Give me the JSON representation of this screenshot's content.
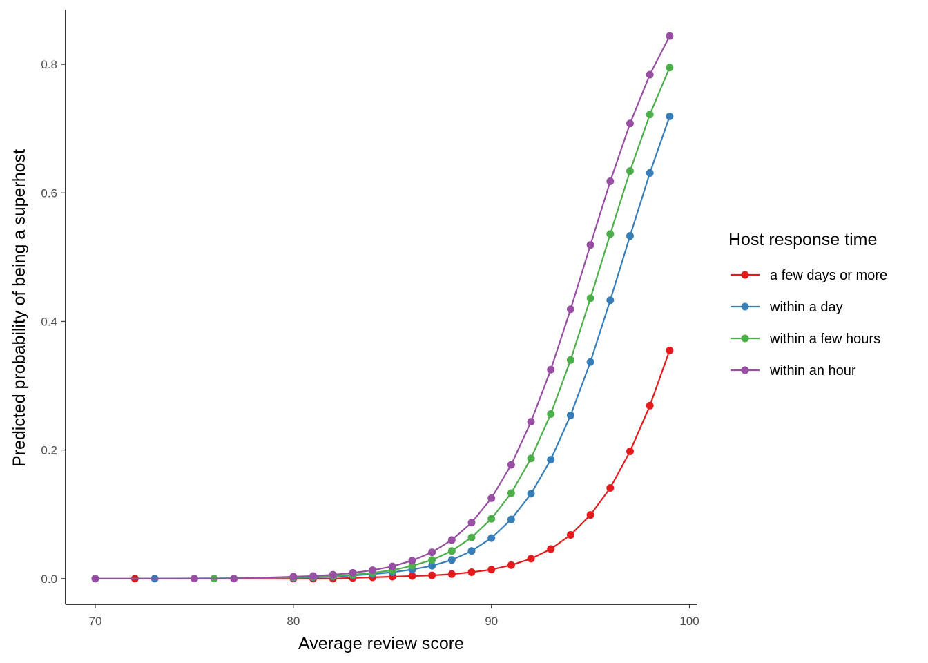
{
  "chart_data": {
    "type": "line",
    "xlabel": "Average review score",
    "ylabel": "Predicted probability of being a superhost",
    "xlim": [
      68.5,
      100.4
    ],
    "ylim": [
      -0.04,
      0.885
    ],
    "x_ticks": [
      70,
      80,
      90,
      100
    ],
    "x_tick_labels": [
      "70",
      "80",
      "90",
      "100"
    ],
    "y_ticks": [
      0.0,
      0.2,
      0.4,
      0.6,
      0.8
    ],
    "y_tick_labels": [
      "0.0",
      "0.2",
      "0.4",
      "0.6",
      "0.8"
    ],
    "grid": false,
    "legend": {
      "title": "Host response time",
      "position": "right"
    },
    "series": [
      {
        "name": "a few days or more",
        "color": "#E41A1C",
        "x": [
          72,
          80,
          81,
          82,
          83,
          84,
          85,
          86,
          87,
          88,
          89,
          90,
          91,
          92,
          93,
          94,
          95,
          96,
          97,
          98,
          99
        ],
        "y": [
          0.0,
          0.0,
          0.0,
          0.0,
          0.001,
          0.002,
          0.003,
          0.004,
          0.005,
          0.007,
          0.01,
          0.014,
          0.021,
          0.031,
          0.046,
          0.068,
          0.099,
          0.141,
          0.198,
          0.269,
          0.355
        ]
      },
      {
        "name": "within a day",
        "color": "#377EB8",
        "x": [
          70,
          73,
          80,
          81,
          82,
          83,
          84,
          85,
          86,
          87,
          88,
          89,
          90,
          91,
          92,
          93,
          94,
          95,
          96,
          97,
          98,
          99
        ],
        "y": [
          0.0,
          0.0,
          0.001,
          0.002,
          0.003,
          0.005,
          0.007,
          0.01,
          0.014,
          0.02,
          0.029,
          0.043,
          0.063,
          0.092,
          0.132,
          0.185,
          0.254,
          0.337,
          0.433,
          0.533,
          0.631,
          0.719
        ]
      },
      {
        "name": "within a few hours",
        "color": "#4DAF4A",
        "x": [
          76,
          80,
          81,
          82,
          83,
          84,
          85,
          86,
          87,
          88,
          89,
          90,
          91,
          92,
          93,
          94,
          95,
          96,
          97,
          98,
          99
        ],
        "y": [
          0.0,
          0.002,
          0.003,
          0.004,
          0.006,
          0.009,
          0.013,
          0.02,
          0.029,
          0.043,
          0.064,
          0.093,
          0.133,
          0.187,
          0.256,
          0.34,
          0.436,
          0.536,
          0.634,
          0.722,
          0.795
        ]
      },
      {
        "name": "within an hour",
        "color": "#984EA3",
        "x": [
          70,
          75,
          77,
          80,
          81,
          82,
          83,
          84,
          85,
          86,
          87,
          88,
          89,
          90,
          91,
          92,
          93,
          94,
          95,
          96,
          97,
          98,
          99
        ],
        "y": [
          0.0,
          0.0,
          0.0,
          0.003,
          0.004,
          0.006,
          0.009,
          0.013,
          0.019,
          0.028,
          0.041,
          0.06,
          0.087,
          0.125,
          0.177,
          0.244,
          0.325,
          0.419,
          0.519,
          0.618,
          0.708,
          0.784,
          0.844
        ]
      }
    ]
  }
}
